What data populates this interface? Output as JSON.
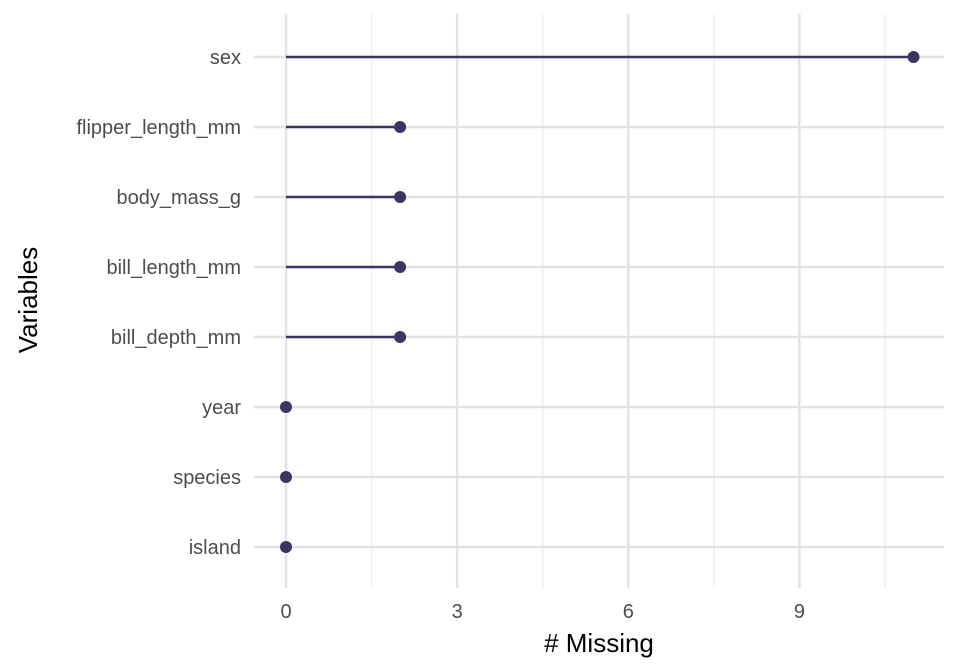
{
  "chart_data": {
    "type": "lollipop",
    "title": "",
    "xlabel": "# Missing",
    "ylabel": "Variables",
    "categories": [
      "sex",
      "flipper_length_mm",
      "body_mass_g",
      "bill_length_mm",
      "bill_depth_mm",
      "year",
      "species",
      "island"
    ],
    "values": [
      11,
      2,
      2,
      2,
      2,
      0,
      0,
      0
    ],
    "xlim": [
      -0.5,
      11.5
    ],
    "x_ticks": [
      "0",
      "3",
      "6",
      "9"
    ],
    "x_tick_values": [
      0,
      3,
      6,
      9
    ],
    "grid": true,
    "legend": "none",
    "colors": {
      "mark": "#3b3661",
      "grid_major": "#e3e3e3",
      "grid_minor": "#efefef",
      "text": "#4d4d4d",
      "title": "#000000"
    }
  }
}
